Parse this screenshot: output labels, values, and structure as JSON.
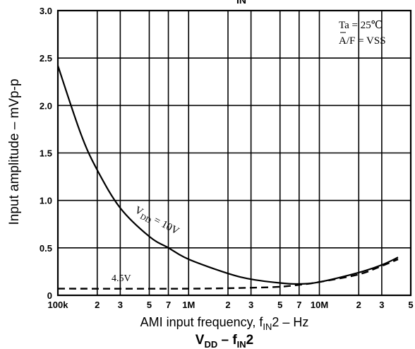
{
  "chart_data": {
    "type": "line",
    "title": "VDD – fIN2",
    "title_parts": {
      "main": "V",
      "sub1": "DD",
      "mid": " – f",
      "sub2": "IN",
      "end": "2"
    },
    "top_title_partial": "IN",
    "xlabel": "AMI input frequency, fIN2 – Hz",
    "xlabel_parts": {
      "pre": "AMI input frequency, f",
      "sub": "IN",
      "post": "2 – Hz"
    },
    "ylabel": "Input amplitude – mVp-p",
    "x_scale": "log",
    "xlim": [
      100000,
      50000000
    ],
    "ylim": [
      0,
      3.0
    ],
    "grid": true,
    "y_ticks": [
      "0",
      "0.5",
      "1.0",
      "1.5",
      "2.0",
      "2.5",
      "3.0"
    ],
    "y_tick_values": [
      0,
      0.5,
      1.0,
      1.5,
      2.0,
      2.5,
      3.0
    ],
    "x_ticks": [
      {
        "value": 100000,
        "label": "100k"
      },
      {
        "value": 200000,
        "label": "2"
      },
      {
        "value": 300000,
        "label": "3"
      },
      {
        "value": 500000,
        "label": "5"
      },
      {
        "value": 700000,
        "label": "7"
      },
      {
        "value": 1000000,
        "label": "1M"
      },
      {
        "value": 2000000,
        "label": "2"
      },
      {
        "value": 3000000,
        "label": "3"
      },
      {
        "value": 5000000,
        "label": "5"
      },
      {
        "value": 7000000,
        "label": "7"
      },
      {
        "value": 10000000,
        "label": "10M"
      },
      {
        "value": 20000000,
        "label": "2"
      },
      {
        "value": 30000000,
        "label": "3"
      },
      {
        "value": 50000000,
        "label": "5"
      }
    ],
    "conditions": [
      "Ta = 25℃",
      "A/F = VSS"
    ],
    "series": [
      {
        "name": "VDD = 10V",
        "style": "solid",
        "x": [
          100000,
          150000,
          200000,
          300000,
          500000,
          700000,
          1000000,
          2000000,
          3000000,
          5000000,
          7000000,
          10000000,
          20000000,
          30000000,
          40000000
        ],
        "y": [
          2.42,
          1.7,
          1.32,
          0.92,
          0.62,
          0.5,
          0.38,
          0.23,
          0.17,
          0.13,
          0.12,
          0.14,
          0.24,
          0.32,
          0.4
        ]
      },
      {
        "name": "4.5V",
        "style": "dashed",
        "x": [
          100000,
          1000000,
          3000000,
          5000000,
          7000000,
          10000000,
          20000000,
          30000000,
          40000000
        ],
        "y": [
          0.07,
          0.07,
          0.08,
          0.09,
          0.11,
          0.14,
          0.22,
          0.31,
          0.38
        ]
      }
    ],
    "series_labels": {
      "vdd": {
        "main": "V",
        "sub": "DD",
        "rest": " = 10V"
      },
      "low": "4.5V"
    }
  }
}
